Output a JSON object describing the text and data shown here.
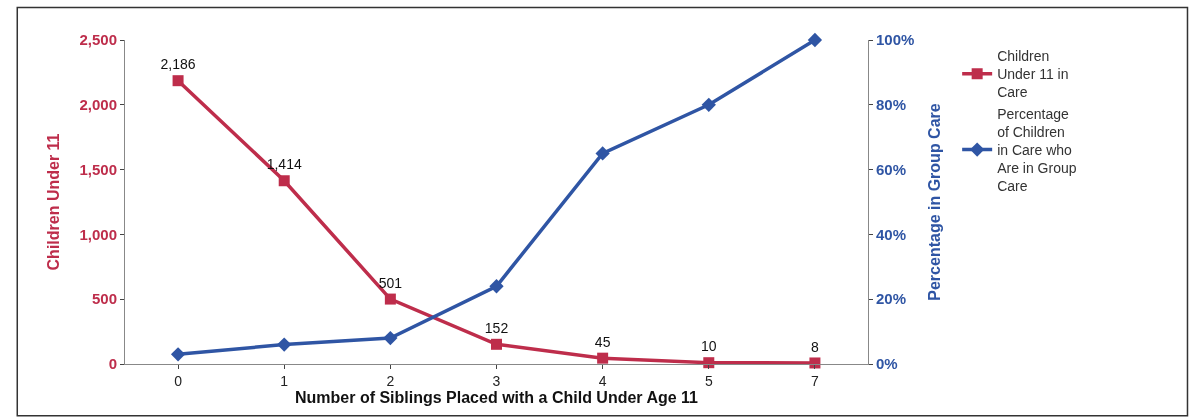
{
  "chart_data": {
    "type": "line",
    "xlabel": "Number of Siblings Placed with a Child Under Age 11",
    "ylabel": "Children Under 11",
    "y2label": "Percentage in Group Care",
    "categories": [
      "0",
      "1",
      "2",
      "3",
      "4",
      "5",
      "7"
    ],
    "series": [
      {
        "name": "Children Under 11 in Care",
        "color": "#be2d4b",
        "marker": "square",
        "values": [
          2186,
          1414,
          501,
          152,
          45,
          10,
          8
        ],
        "value_labels": [
          "2,186",
          "1,414",
          "501",
          "152",
          "45",
          "10",
          "8"
        ]
      },
      {
        "name": "Percentage of Children in Care who Are in Group Care",
        "color": "#2f55a4",
        "marker": "diamond",
        "axis": "y2",
        "values": [
          3,
          6,
          8,
          24,
          65,
          80,
          100
        ]
      }
    ],
    "ylim": [
      0,
      2500
    ],
    "yticks": [
      0,
      {
        "value": 500,
        "label": "500"
      },
      {
        "value": 1000,
        "label": "1,000"
      },
      {
        "value": 1500,
        "label": "1,500"
      },
      {
        "value": 2000,
        "label": "2,000"
      },
      {
        "value": 2500,
        "label": "2,500"
      }
    ],
    "y2lim": [
      0,
      100
    ],
    "y2ticks": [
      {
        "value": 0,
        "label": "0%"
      },
      {
        "value": 20,
        "label": "20%"
      },
      {
        "value": 40,
        "label": "40%"
      },
      {
        "value": 60,
        "label": "60%"
      },
      {
        "value": 80,
        "label": "80%"
      },
      {
        "value": 100,
        "label": "100%"
      }
    ],
    "legend": "right",
    "line_style": "solid"
  }
}
